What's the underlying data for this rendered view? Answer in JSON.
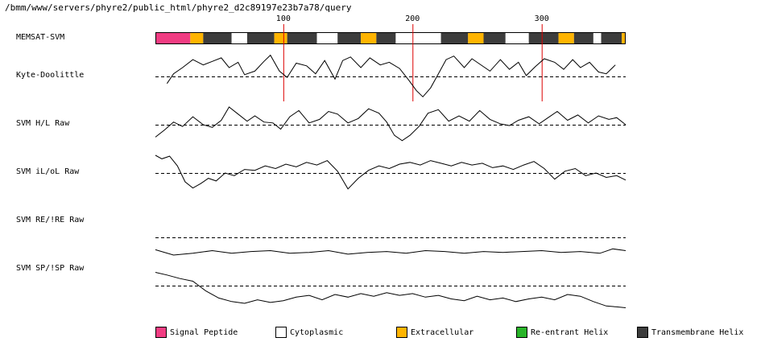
{
  "header": {
    "path": "/bmm/www/servers/phyre2/public_html/phyre2_d2c89197e23b7a78/query"
  },
  "chart_data": {
    "type": "line",
    "x_range": [
      1,
      365
    ],
    "x_ticks": [
      100,
      200,
      300
    ],
    "colors": {
      "signal": "#f03c82",
      "cytoplasmic": "#ffffff",
      "extracellular": "#ffb400",
      "reentrant": "#28b428",
      "tm": "#3c3c3c",
      "marker": "#dd0000",
      "line": "#000000"
    },
    "memsat": {
      "label": "MEMSAT-SVM",
      "segments": [
        {
          "start": 1,
          "end": 28,
          "type": "signal"
        },
        {
          "start": 28,
          "end": 38,
          "type": "extracellular"
        },
        {
          "start": 38,
          "end": 60,
          "type": "tm"
        },
        {
          "start": 60,
          "end": 72,
          "type": "cytoplasmic"
        },
        {
          "start": 72,
          "end": 93,
          "type": "tm"
        },
        {
          "start": 93,
          "end": 103,
          "type": "extracellular"
        },
        {
          "start": 103,
          "end": 126,
          "type": "tm"
        },
        {
          "start": 126,
          "end": 142,
          "type": "cytoplasmic"
        },
        {
          "start": 142,
          "end": 160,
          "type": "tm"
        },
        {
          "start": 160,
          "end": 172,
          "type": "extracellular"
        },
        {
          "start": 172,
          "end": 187,
          "type": "tm"
        },
        {
          "start": 187,
          "end": 222,
          "type": "cytoplasmic"
        },
        {
          "start": 222,
          "end": 243,
          "type": "tm"
        },
        {
          "start": 243,
          "end": 255,
          "type": "extracellular"
        },
        {
          "start": 255,
          "end": 272,
          "type": "tm"
        },
        {
          "start": 272,
          "end": 290,
          "type": "cytoplasmic"
        },
        {
          "start": 290,
          "end": 313,
          "type": "tm"
        },
        {
          "start": 313,
          "end": 325,
          "type": "extracellular"
        },
        {
          "start": 325,
          "end": 340,
          "type": "tm"
        },
        {
          "start": 340,
          "end": 346,
          "type": "cytoplasmic"
        },
        {
          "start": 346,
          "end": 362,
          "type": "tm"
        },
        {
          "start": 362,
          "end": 365,
          "type": "extracellular"
        }
      ]
    },
    "tracks": [
      {
        "name": "Kyte-Doolittle",
        "ylim": [
          -3,
          3
        ],
        "threshold": 0,
        "markers": [
          100,
          200,
          300
        ],
        "x": [
          10,
          15,
          22,
          30,
          38,
          45,
          52,
          58,
          65,
          70,
          78,
          85,
          90,
          97,
          103,
          110,
          118,
          125,
          132,
          140,
          146,
          152,
          160,
          167,
          175,
          182,
          190,
          197,
          203,
          208,
          214,
          220,
          226,
          232,
          240,
          246,
          252,
          260,
          268,
          275,
          282,
          288,
          295,
          302,
          310,
          317,
          324,
          330,
          337,
          344,
          350,
          357
        ],
        "y": [
          -0.8,
          0.3,
          1.0,
          1.9,
          1.3,
          1.7,
          2.1,
          1.0,
          1.6,
          0.2,
          0.6,
          1.7,
          2.4,
          0.6,
          -0.1,
          1.5,
          1.2,
          0.3,
          1.8,
          -0.3,
          1.8,
          2.2,
          1.0,
          2.1,
          1.3,
          1.6,
          0.9,
          -0.4,
          -1.6,
          -2.3,
          -1.3,
          0.3,
          1.9,
          2.3,
          1.0,
          2.0,
          1.4,
          0.6,
          1.9,
          0.8,
          1.6,
          0.1,
          1.1,
          2.0,
          1.6,
          0.8,
          1.9,
          1.0,
          1.6,
          0.5,
          0.3,
          1.3
        ]
      },
      {
        "name": "SVM H/L Raw",
        "ylim": [
          -3,
          3
        ],
        "threshold": 0,
        "markers": [],
        "x": [
          1,
          8,
          15,
          22,
          30,
          38,
          45,
          52,
          58,
          65,
          72,
          78,
          85,
          92,
          98,
          105,
          112,
          120,
          128,
          135,
          142,
          150,
          158,
          166,
          174,
          180,
          186,
          192,
          198,
          205,
          212,
          220,
          228,
          236,
          244,
          252,
          260,
          268,
          275,
          282,
          290,
          298,
          305,
          312,
          320,
          328,
          336,
          344,
          352,
          358,
          365
        ],
        "y": [
          -1.4,
          -0.6,
          0.3,
          -0.2,
          0.9,
          0.0,
          -0.3,
          0.5,
          2.0,
          1.2,
          0.4,
          1.0,
          0.3,
          0.2,
          -0.5,
          0.9,
          1.6,
          0.2,
          0.6,
          1.5,
          1.2,
          0.2,
          0.7,
          1.8,
          1.3,
          0.3,
          -1.2,
          -1.8,
          -1.2,
          -0.2,
          1.3,
          1.7,
          0.4,
          1.0,
          0.4,
          1.6,
          0.6,
          0.1,
          -0.1,
          0.5,
          0.9,
          0.1,
          0.8,
          1.5,
          0.5,
          1.1,
          0.2,
          1.0,
          0.6,
          0.8,
          0.0
        ]
      },
      {
        "name": "SVM iL/oL Raw",
        "ylim": [
          -3,
          3
        ],
        "threshold": 0,
        "markers": [],
        "x": [
          1,
          6,
          12,
          18,
          24,
          30,
          36,
          42,
          48,
          55,
          62,
          70,
          78,
          86,
          94,
          102,
          110,
          118,
          126,
          134,
          142,
          150,
          158,
          166,
          174,
          182,
          190,
          198,
          206,
          214,
          222,
          230,
          238,
          246,
          254,
          262,
          270,
          278,
          286,
          294,
          302,
          310,
          318,
          326,
          334,
          342,
          350,
          358,
          365
        ],
        "y": [
          2.0,
          1.6,
          1.9,
          0.8,
          -1.0,
          -1.7,
          -1.2,
          -0.6,
          -0.9,
          0.0,
          -0.3,
          0.4,
          0.3,
          0.8,
          0.5,
          1.0,
          0.7,
          1.2,
          0.9,
          1.4,
          0.2,
          -1.8,
          -0.6,
          0.3,
          0.8,
          0.5,
          1.0,
          1.2,
          0.9,
          1.4,
          1.1,
          0.8,
          1.2,
          0.9,
          1.1,
          0.6,
          0.8,
          0.4,
          0.9,
          1.3,
          0.5,
          -0.7,
          0.2,
          0.5,
          -0.3,
          0.0,
          -0.5,
          -0.3,
          -0.8
        ]
      },
      {
        "name": "SVM RE/!RE Raw",
        "ylim": [
          -3,
          3
        ],
        "threshold": 0,
        "markers": [],
        "x": [
          1,
          15,
          30,
          45,
          60,
          75,
          90,
          105,
          120,
          135,
          150,
          165,
          180,
          195,
          210,
          225,
          240,
          255,
          270,
          285,
          300,
          315,
          330,
          345,
          355,
          365
        ],
        "y": [
          -1.4,
          -2.0,
          -1.8,
          -1.5,
          -1.8,
          -1.6,
          -1.5,
          -1.8,
          -1.7,
          -1.5,
          -1.9,
          -1.7,
          -1.6,
          -1.8,
          -1.5,
          -1.6,
          -1.8,
          -1.6,
          -1.7,
          -1.6,
          -1.5,
          -1.7,
          -1.6,
          -1.8,
          -1.3,
          -1.5
        ]
      },
      {
        "name": "SVM SP/!SP Raw",
        "ylim": [
          -3,
          3
        ],
        "threshold": 0,
        "markers": [],
        "x": [
          1,
          10,
          20,
          30,
          40,
          50,
          60,
          70,
          80,
          90,
          100,
          110,
          120,
          130,
          140,
          150,
          160,
          170,
          180,
          190,
          200,
          210,
          220,
          230,
          240,
          250,
          260,
          270,
          280,
          290,
          300,
          310,
          320,
          330,
          340,
          350,
          358,
          365
        ],
        "y": [
          1.5,
          1.2,
          0.8,
          0.5,
          -0.6,
          -1.4,
          -1.8,
          -2.0,
          -1.6,
          -1.9,
          -1.7,
          -1.3,
          -1.1,
          -1.6,
          -1.0,
          -1.3,
          -0.9,
          -1.2,
          -0.8,
          -1.1,
          -0.9,
          -1.3,
          -1.1,
          -1.5,
          -1.7,
          -1.2,
          -1.6,
          -1.4,
          -1.8,
          -1.5,
          -1.3,
          -1.6,
          -1.0,
          -1.2,
          -1.8,
          -2.3,
          -2.4,
          -2.5
        ]
      }
    ],
    "legend": [
      {
        "label": "Signal Peptide",
        "color": "#f03c82"
      },
      {
        "label": "Cytoplasmic",
        "color": "#ffffff"
      },
      {
        "label": "Extracellular",
        "color": "#ffb400"
      },
      {
        "label": "Re-entrant Helix",
        "color": "#28b428"
      },
      {
        "label": "Transmembrane Helix",
        "color": "#3c3c3c"
      }
    ]
  }
}
